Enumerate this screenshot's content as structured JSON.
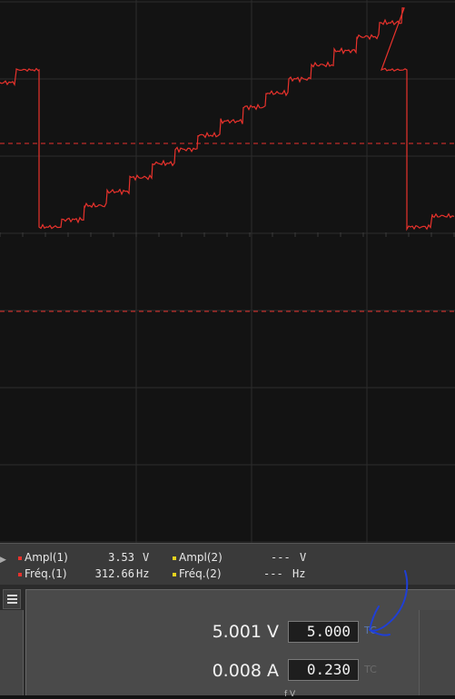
{
  "colors": {
    "trace": "#e8322c",
    "channel2": "#e6d21e",
    "grid": "#2c2c2c",
    "annotation": "#1f3fd6",
    "tc_active": "#5a78b0",
    "tc_inactive": "#6b6b6b"
  },
  "measurements": {
    "ch1": [
      {
        "label": "Ampl(1)",
        "value": "3.53",
        "unit": "V"
      },
      {
        "label": "Fréq.(1)",
        "value": "312.66",
        "unit": "Hz"
      }
    ],
    "ch2": [
      {
        "label": "Ampl(2)",
        "value": "---",
        "unit": "V"
      },
      {
        "label": "Fréq.(2)",
        "value": "---",
        "unit": "Hz"
      }
    ]
  },
  "power_supply": {
    "voltage": {
      "readout": "5.001 V",
      "setpoint": "5.000",
      "badge": "TC"
    },
    "current": {
      "readout": "0.008 A",
      "setpoint": "0.230",
      "badge": "TC"
    },
    "partial_label": "f V"
  },
  "icons": {
    "menu": "hamburger-menu-icon",
    "expand": "chevron-right-icon"
  }
}
